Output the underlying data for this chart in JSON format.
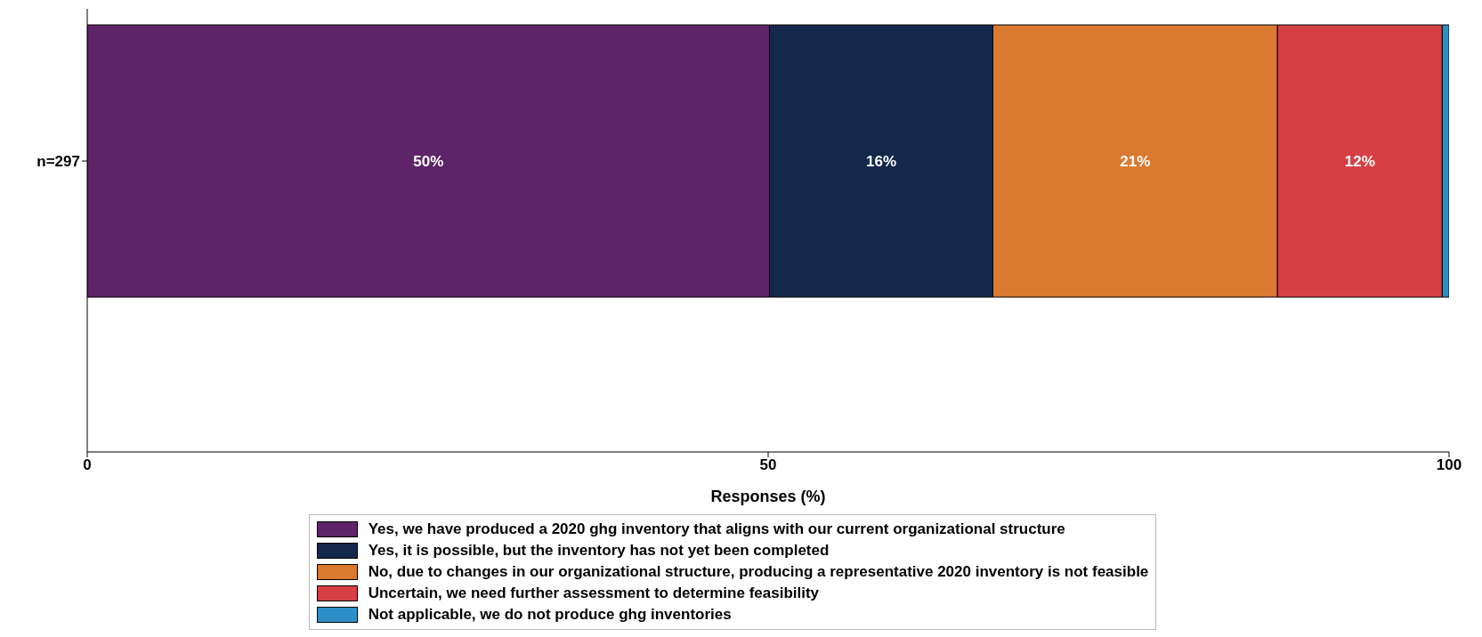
{
  "chart_data": {
    "type": "bar",
    "orientation": "horizontal",
    "stacked": true,
    "categories": [
      "n=297"
    ],
    "xlabel": "Responses (%)",
    "xlim": [
      0,
      100
    ],
    "xticks": [
      0,
      50,
      100
    ],
    "grid": false,
    "legend": "bottom",
    "series": [
      {
        "name": "Yes, we have produced a 2020 ghg inventory that aligns with our current organizational structure",
        "color": "#5e2468",
        "values": [
          50.1
        ],
        "value_labels": [
          "50%"
        ]
      },
      {
        "name": "Yes, it is possible, but the inventory has not yet been completed",
        "color": "#14284b",
        "values": [
          16.4
        ],
        "value_labels": [
          "16%"
        ]
      },
      {
        "name": "No, due to changes in our organizational structure, producing a representative 2020 inventory is not feasible",
        "color": "#d97a30",
        "values": [
          20.9
        ],
        "value_labels": [
          "21%"
        ]
      },
      {
        "name": "Uncertain, we need further assessment to determine feasibility",
        "color": "#d64045",
        "values": [
          12.1
        ],
        "value_labels": [
          "12%"
        ]
      },
      {
        "name": "Not applicable, we do not produce ghg inventories",
        "color": "#2e8fc8",
        "values": [
          0.5
        ],
        "value_labels": [
          null
        ]
      }
    ]
  }
}
